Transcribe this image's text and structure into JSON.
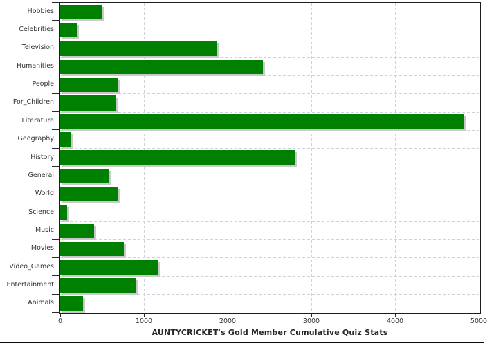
{
  "chart_data": {
    "type": "bar",
    "orientation": "horizontal",
    "title": "AUNTYCRICKET's Gold Member Cumulative Quiz Stats",
    "xlabel": "",
    "ylabel": "",
    "categories": [
      "Hobbies",
      "Celebrities",
      "Television",
      "Humanities",
      "People",
      "For_Children",
      "Literature",
      "Geography",
      "History",
      "General",
      "World",
      "Science",
      "Music",
      "Movies",
      "Video_Games",
      "Entertainment",
      "Animals"
    ],
    "values": [
      505,
      200,
      1880,
      2420,
      685,
      670,
      4825,
      130,
      2805,
      590,
      695,
      85,
      405,
      760,
      1165,
      910,
      275
    ],
    "xlim": [
      0,
      5000
    ],
    "x_ticks": [
      0,
      1000,
      2000,
      3000,
      4000,
      5000
    ],
    "grid": "dashed vertical lines at x ticks, dashed horizontal lines at category boundaries",
    "legend": "none",
    "bar_color": "#008000",
    "bar_shadow_color": "#c9c9c9",
    "grid_color": "#ccd3db",
    "axis_color": "#1c1c1c",
    "label_color": "#333333",
    "title_color": "#262626",
    "background_color": "#ffffff"
  }
}
